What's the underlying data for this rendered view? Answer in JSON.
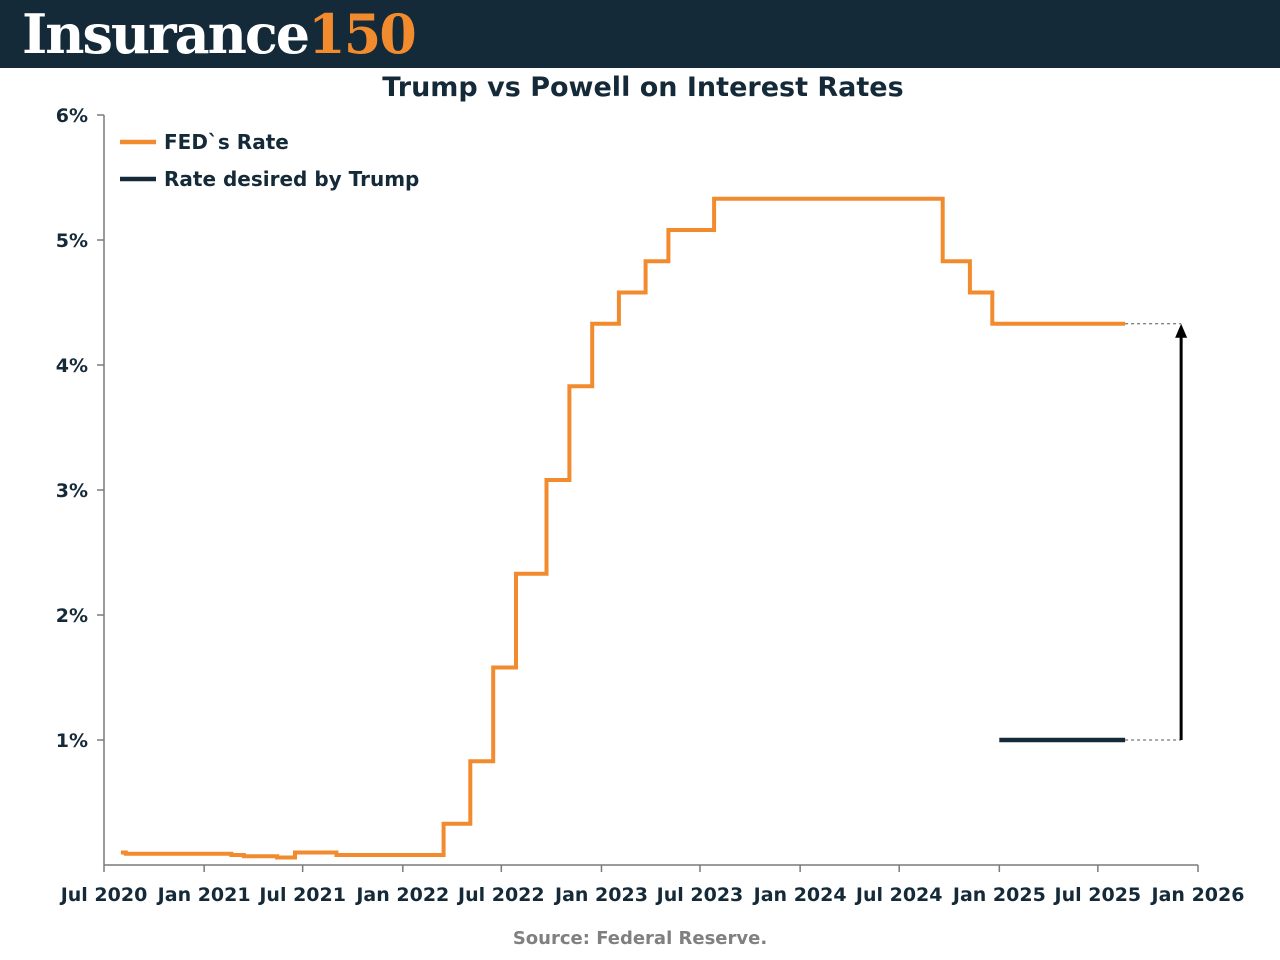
{
  "brand": {
    "name_word": "Insurance",
    "name_number": "150",
    "word_color": "#ffffff",
    "number_color": "#f18b2e",
    "header_color": "#152a38"
  },
  "source_note": "Source: Federal Reserve.",
  "chart_data": {
    "type": "line",
    "title": "Trump vs Powell on Interest Rates",
    "xlabel": "",
    "ylabel": "",
    "x_ticks": [
      "Jul 2020",
      "Jan 2021",
      "Jul 2021",
      "Jan 2022",
      "Jul 2022",
      "Jan 2023",
      "Jul 2023",
      "Jan 2024",
      "Jul 2024",
      "Jan 2025",
      "Jul 2025",
      "Jan 2026"
    ],
    "y_ticks": [
      "1%",
      "2%",
      "3%",
      "4%",
      "5%",
      "6%"
    ],
    "ylim": [
      0,
      6
    ],
    "xlim": [
      "2020-07-01",
      "2026-01-01"
    ],
    "grid": false,
    "legend_position": "top-left",
    "series": [
      {
        "name": "FED`s Rate",
        "color": "#f18b2e",
        "step": true,
        "points": [
          [
            "2020-08-01",
            0.1
          ],
          [
            "2020-08-10",
            0.09
          ],
          [
            "2020-09-15",
            0.09
          ],
          [
            "2020-10-20",
            0.09
          ],
          [
            "2020-12-01",
            0.09
          ],
          [
            "2021-01-15",
            0.09
          ],
          [
            "2021-02-20",
            0.08
          ],
          [
            "2021-03-15",
            0.07
          ],
          [
            "2021-04-20",
            0.07
          ],
          [
            "2021-05-15",
            0.06
          ],
          [
            "2021-06-17",
            0.06
          ],
          [
            "2021-06-17",
            0.1
          ],
          [
            "2021-07-15",
            0.1
          ],
          [
            "2021-08-15",
            0.1
          ],
          [
            "2021-09-01",
            0.08
          ],
          [
            "2021-10-15",
            0.08
          ],
          [
            "2021-12-01",
            0.08
          ],
          [
            "2022-01-15",
            0.08
          ],
          [
            "2022-03-16",
            0.08
          ],
          [
            "2022-03-17",
            0.33
          ],
          [
            "2022-05-04",
            0.33
          ],
          [
            "2022-05-05",
            0.83
          ],
          [
            "2022-06-15",
            0.83
          ],
          [
            "2022-06-16",
            1.58
          ],
          [
            "2022-07-27",
            1.58
          ],
          [
            "2022-07-28",
            2.33
          ],
          [
            "2022-09-21",
            2.33
          ],
          [
            "2022-09-22",
            3.08
          ],
          [
            "2022-11-02",
            3.08
          ],
          [
            "2022-11-03",
            3.83
          ],
          [
            "2022-12-14",
            3.83
          ],
          [
            "2022-12-15",
            4.33
          ],
          [
            "2023-02-01",
            4.33
          ],
          [
            "2023-02-02",
            4.58
          ],
          [
            "2023-03-22",
            4.58
          ],
          [
            "2023-03-23",
            4.83
          ],
          [
            "2023-05-03",
            4.83
          ],
          [
            "2023-05-04",
            5.08
          ],
          [
            "2023-07-26",
            5.08
          ],
          [
            "2023-07-27",
            5.33
          ],
          [
            "2024-09-18",
            5.33
          ],
          [
            "2024-09-19",
            4.83
          ],
          [
            "2024-11-07",
            4.83
          ],
          [
            "2024-11-08",
            4.58
          ],
          [
            "2024-12-18",
            4.58
          ],
          [
            "2024-12-19",
            4.33
          ],
          [
            "2025-08-20",
            4.33
          ]
        ]
      },
      {
        "name": "Rate desired by Trump",
        "color": "#152a38",
        "step": false,
        "points": [
          [
            "2025-01-01",
            1.0
          ],
          [
            "2025-08-20",
            1.0
          ]
        ]
      }
    ],
    "annotations": [
      {
        "type": "gap-arrow",
        "x_date": "2025-12-01",
        "from": 1.0,
        "to": 4.33,
        "color": "#000000"
      }
    ]
  }
}
